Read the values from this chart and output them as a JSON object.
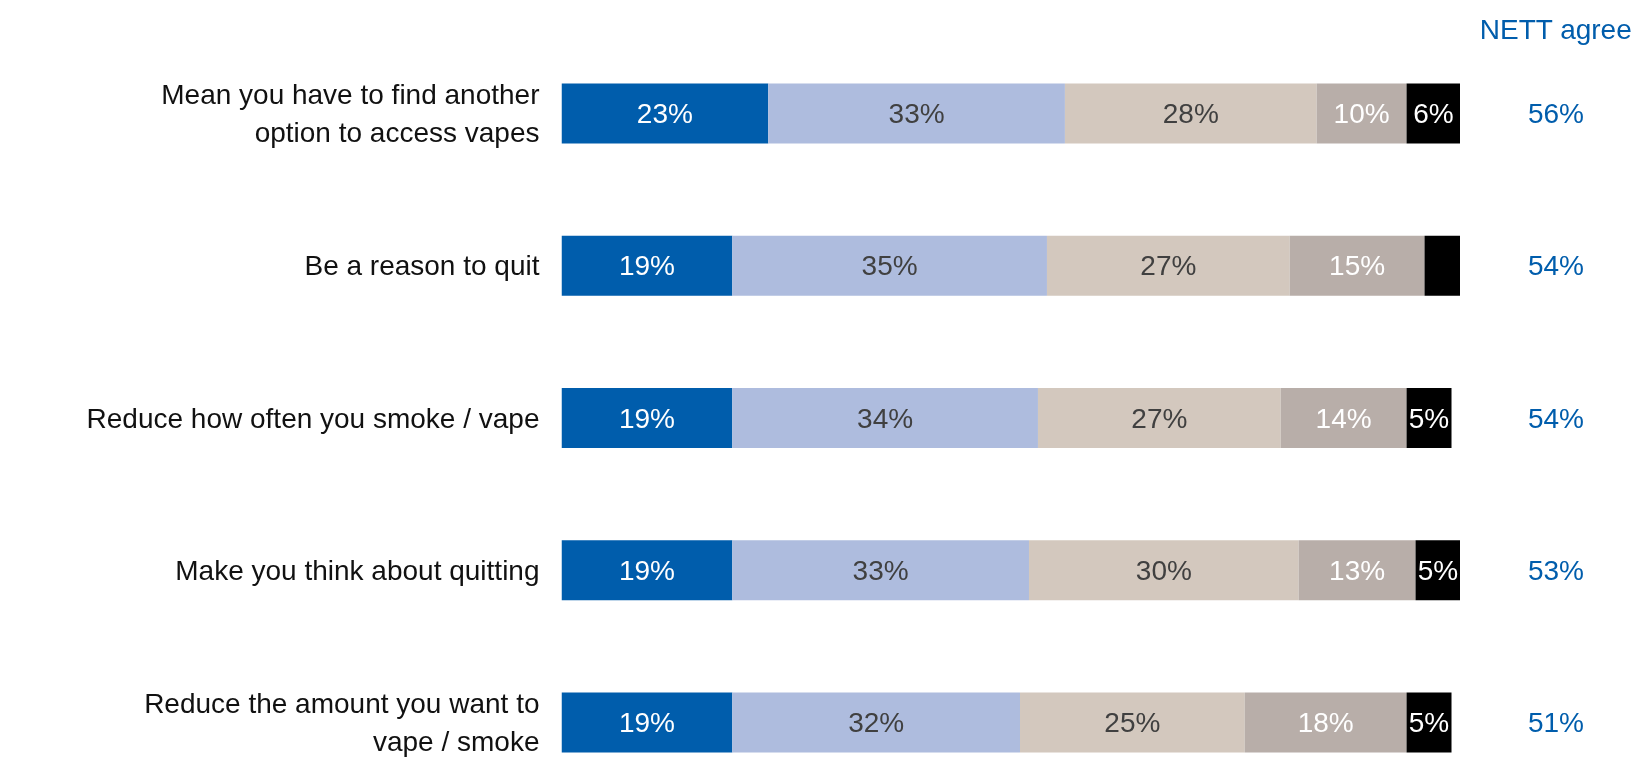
{
  "chart_data": {
    "type": "bar",
    "orientation": "horizontal",
    "stacked": true,
    "tick_labels": "y",
    "xlim": [
      0,
      100
    ],
    "categories": [
      "Mean you have to find another option to access vapes",
      "Be a reason to quit",
      "Reduce how often you smoke / vape",
      "Make you think about quitting",
      "Reduce the amount you want to vape / smoke"
    ],
    "series": [
      {
        "color": "#005dac",
        "values": [
          23,
          19,
          19,
          19,
          19
        ],
        "value_labels": [
          "23%",
          "19%",
          "19%",
          "19%",
          "19%"
        ]
      },
      {
        "color": "#aebcde",
        "values": [
          33,
          35,
          34,
          33,
          32
        ],
        "value_labels": [
          "33%",
          "35%",
          "34%",
          "33%",
          "32%"
        ]
      },
      {
        "color": "#d3c8be",
        "values": [
          28,
          27,
          27,
          30,
          25
        ],
        "value_labels": [
          "28%",
          "27%",
          "27%",
          "30%",
          "25%"
        ]
      },
      {
        "color": "#b8aea9",
        "values": [
          10,
          15,
          14,
          13,
          18
        ],
        "value_labels": [
          "10%",
          "15%",
          "14%",
          "13%",
          "18%"
        ]
      },
      {
        "color": "#000000",
        "values": [
          6,
          4,
          5,
          5,
          5
        ],
        "value_labels": [
          "6%",
          null,
          "5%",
          "5%",
          "5%"
        ]
      }
    ],
    "annotations": [
      "NETT agree",
      "56%",
      "54%",
      "54%",
      "53%",
      "51%"
    ]
  }
}
